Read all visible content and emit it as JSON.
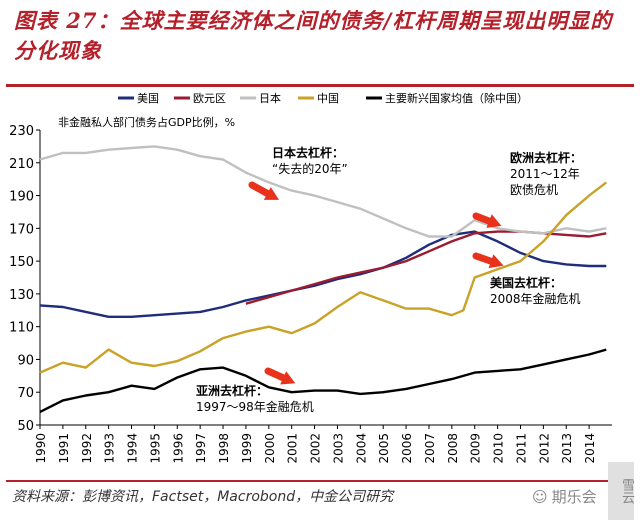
{
  "header": {
    "title": "图表 27：全球主要经济体之间的债务/杠杆周期呈现出明显的分化现象"
  },
  "footer": {
    "source": "资料来源：彭博资讯，Factset，Macrobond，中金公司研究",
    "watermark": "期乐会",
    "badge": "雪云"
  },
  "chart_data": {
    "type": "line",
    "ylabel": "非金融私人部门债务占GDP比例，%",
    "ylim": [
      50,
      230
    ],
    "yticks": [
      50,
      70,
      90,
      110,
      130,
      150,
      170,
      190,
      210,
      230
    ],
    "xlim": [
      1990,
      2015
    ],
    "xticks": [
      "1990",
      "1991",
      "1992",
      "1993",
      "1994",
      "1995",
      "1996",
      "1997",
      "1998",
      "1999",
      "2000",
      "2001",
      "2002",
      "2003",
      "2004",
      "2005",
      "2006",
      "2007",
      "2008",
      "2009",
      "2010",
      "2011",
      "2012",
      "2013",
      "2014"
    ],
    "legend_position": "top",
    "series": [
      {
        "name": "美国",
        "color": "#1f2d7a",
        "points": [
          [
            1990,
            123
          ],
          [
            1991,
            122
          ],
          [
            1992,
            119
          ],
          [
            1993,
            116
          ],
          [
            1994,
            116
          ],
          [
            1995,
            117
          ],
          [
            1996,
            118
          ],
          [
            1997,
            119
          ],
          [
            1998,
            122
          ],
          [
            1999,
            126
          ],
          [
            2000,
            129
          ],
          [
            2001,
            132
          ],
          [
            2002,
            135
          ],
          [
            2003,
            139
          ],
          [
            2004,
            142
          ],
          [
            2005,
            146
          ],
          [
            2006,
            152
          ],
          [
            2007,
            160
          ],
          [
            2008,
            166
          ],
          [
            2009,
            168
          ],
          [
            2010,
            162
          ],
          [
            2011,
            155
          ],
          [
            2012,
            150
          ],
          [
            2013,
            148
          ],
          [
            2014,
            147
          ],
          [
            2014.75,
            147
          ]
        ]
      },
      {
        "name": "欧元区",
        "color": "#9b1b30",
        "points": [
          [
            1999,
            124
          ],
          [
            2000,
            128
          ],
          [
            2001,
            132
          ],
          [
            2002,
            136
          ],
          [
            2003,
            140
          ],
          [
            2004,
            143
          ],
          [
            2005,
            146
          ],
          [
            2006,
            150
          ],
          [
            2007,
            156
          ],
          [
            2008,
            162
          ],
          [
            2009,
            167
          ],
          [
            2010,
            168
          ],
          [
            2011,
            168
          ],
          [
            2012,
            167
          ],
          [
            2013,
            166
          ],
          [
            2014,
            165
          ],
          [
            2014.75,
            167
          ]
        ]
      },
      {
        "name": "日本",
        "color": "#c0c0c0",
        "points": [
          [
            1990,
            212
          ],
          [
            1991,
            216
          ],
          [
            1992,
            216
          ],
          [
            1993,
            218
          ],
          [
            1994,
            219
          ],
          [
            1995,
            220
          ],
          [
            1996,
            218
          ],
          [
            1997,
            214
          ],
          [
            1998,
            212
          ],
          [
            1999,
            204
          ],
          [
            2000,
            198
          ],
          [
            2001,
            193
          ],
          [
            2002,
            190
          ],
          [
            2003,
            186
          ],
          [
            2004,
            182
          ],
          [
            2005,
            176
          ],
          [
            2006,
            170
          ],
          [
            2007,
            165
          ],
          [
            2008,
            165
          ],
          [
            2009,
            175
          ],
          [
            2010,
            170
          ],
          [
            2011,
            168
          ],
          [
            2012,
            167
          ],
          [
            2013,
            170
          ],
          [
            2014,
            168
          ],
          [
            2014.75,
            170
          ]
        ]
      },
      {
        "name": "中国",
        "color": "#c9a227",
        "points": [
          [
            1990,
            82
          ],
          [
            1991,
            88
          ],
          [
            1992,
            85
          ],
          [
            1993,
            96
          ],
          [
            1994,
            88
          ],
          [
            1995,
            86
          ],
          [
            1996,
            89
          ],
          [
            1997,
            95
          ],
          [
            1998,
            103
          ],
          [
            1999,
            107
          ],
          [
            2000,
            110
          ],
          [
            2001,
            106
          ],
          [
            2002,
            112
          ],
          [
            2003,
            122
          ],
          [
            2004,
            131
          ],
          [
            2005,
            126
          ],
          [
            2006,
            121
          ],
          [
            2007,
            121
          ],
          [
            2008,
            117
          ],
          [
            2008.5,
            120
          ],
          [
            2009,
            140
          ],
          [
            2010,
            145
          ],
          [
            2011,
            150
          ],
          [
            2012,
            162
          ],
          [
            2013,
            178
          ],
          [
            2014,
            190
          ],
          [
            2014.75,
            198
          ]
        ]
      },
      {
        "name": "主要新兴国家均值（除中国）",
        "color": "#000000",
        "points": [
          [
            1990,
            58
          ],
          [
            1991,
            65
          ],
          [
            1992,
            68
          ],
          [
            1993,
            70
          ],
          [
            1994,
            74
          ],
          [
            1995,
            72
          ],
          [
            1996,
            79
          ],
          [
            1997,
            84
          ],
          [
            1998,
            85
          ],
          [
            1999,
            80
          ],
          [
            2000,
            73
          ],
          [
            2001,
            70
          ],
          [
            2002,
            71
          ],
          [
            2003,
            71
          ],
          [
            2004,
            69
          ],
          [
            2005,
            70
          ],
          [
            2006,
            72
          ],
          [
            2007,
            75
          ],
          [
            2008,
            78
          ],
          [
            2009,
            82
          ],
          [
            2010,
            83
          ],
          [
            2011,
            84
          ],
          [
            2012,
            87
          ],
          [
            2013,
            90
          ],
          [
            2014,
            93
          ],
          [
            2014.75,
            96
          ]
        ]
      }
    ],
    "annotations": [
      {
        "lines": [
          "日本去杠杆：",
          "“失去的20年”"
        ]
      },
      {
        "lines": [
          "欧洲去杠杆：",
          "2011～12年",
          "欧债危机"
        ]
      },
      {
        "lines": [
          "美国去杠杆：",
          "2008年金融危机"
        ]
      },
      {
        "lines": [
          "亚洲去杠杆：",
          "1997～98年金融危机"
        ]
      }
    ]
  }
}
